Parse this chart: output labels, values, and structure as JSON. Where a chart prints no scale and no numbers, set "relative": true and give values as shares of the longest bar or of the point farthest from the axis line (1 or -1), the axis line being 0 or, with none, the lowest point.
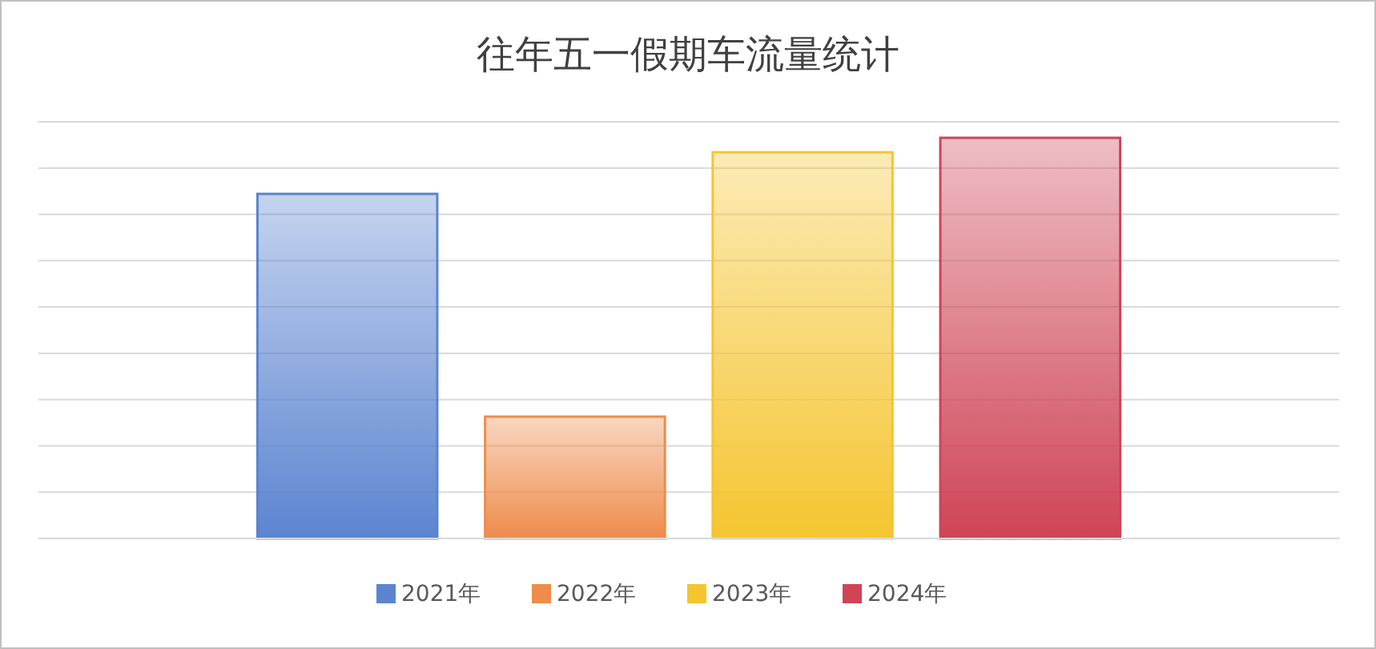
{
  "chart_data": {
    "type": "bar",
    "title": "往年五一假期车流量统计",
    "relative": true,
    "categories": [
      null
    ],
    "series": [
      {
        "name": "2021年",
        "color": "#5b84d0",
        "values": [
          0.86
        ]
      },
      {
        "name": "2022年",
        "color": "#ee8c4c",
        "values": [
          0.304
        ]
      },
      {
        "name": "2023年",
        "color": "#f5c530",
        "values": [
          0.964
        ]
      },
      {
        "name": "2024年",
        "color": "#cf4456",
        "values": [
          1
        ]
      }
    ],
    "grid": "y",
    "legend": "bottom"
  }
}
